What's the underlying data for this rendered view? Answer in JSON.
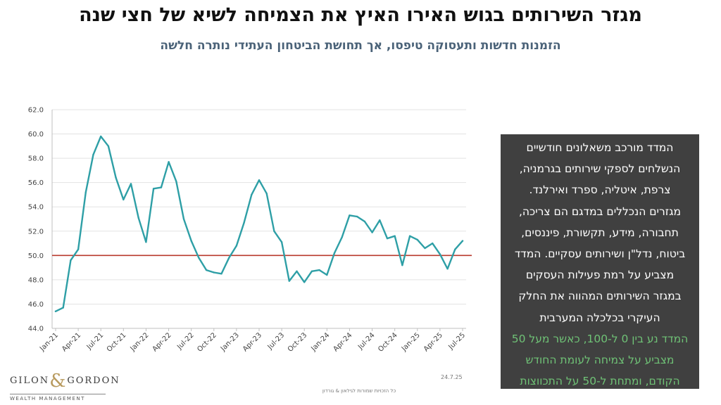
{
  "title": "מגזר השירותים בגוש האירו האיץ את הצמיחה לשיא של חצי שנה",
  "subtitle": "הזמנות חדשות ותעסוקה טיפסו, אך תחושת הביטחון העתידי נותרה חלשה",
  "note": {
    "lines": [
      "המדד מורכב משאלונים חודשיים",
      "הנשלחים לספקי שירותים בגרמניה,",
      "צרפת, איטליה, ספרד ואירלנד.",
      "מגזרים הנכללים במדגם הם צריכה,",
      "תחבורה, מידע, תקשורת, פיננסים,",
      "ביטוח, נדל\"ן ושירותים עסקיים. המדד",
      "מצביע על רמת פעילות העסקים",
      "במגזר השירותים המהווה את החלק",
      "העיקרי בכלכלה המערבית"
    ],
    "green_lines": [
      "המדד נע בין 0 ל-100, כאשר מעל 50",
      "מצביע על צמיחה לעומת החודש",
      "הקודם, ומתחת ל-50 על התכווצות"
    ]
  },
  "logo": {
    "left": "GILON",
    "amp": "&",
    "right": "GORDON",
    "sub": "WEALTH MANAGEMENT"
  },
  "date": "24.7.25",
  "footer": "כל הזכויות שמורות לגילאון & גורדון",
  "colors": {
    "line": "#2e9fa6",
    "threshold": "#b8392c",
    "grid": "#e3e3e3",
    "note_bg": "#404040",
    "note_green": "#6fc276"
  },
  "chart_data": {
    "type": "line",
    "x_tick_labels": [
      "Jan-21",
      "Apr-21",
      "Jul-21",
      "Oct-21",
      "Jan-22",
      "Apr-22",
      "Jul-22",
      "Oct-22",
      "Jan-23",
      "Apr-23",
      "Jul-23",
      "Oct-23",
      "Jan-24",
      "Apr-24",
      "Jul-24",
      "Oct-24",
      "Jan-25",
      "Apr-25",
      "Jul-25"
    ],
    "x": [
      "Jan-21",
      "Feb-21",
      "Mar-21",
      "Apr-21",
      "May-21",
      "Jun-21",
      "Jul-21",
      "Aug-21",
      "Sep-21",
      "Oct-21",
      "Nov-21",
      "Dec-21",
      "Jan-22",
      "Feb-22",
      "Mar-22",
      "Apr-22",
      "May-22",
      "Jun-22",
      "Jul-22",
      "Aug-22",
      "Sep-22",
      "Oct-22",
      "Nov-22",
      "Dec-22",
      "Jan-23",
      "Feb-23",
      "Mar-23",
      "Apr-23",
      "May-23",
      "Jun-23",
      "Jul-23",
      "Aug-23",
      "Sep-23",
      "Oct-23",
      "Nov-23",
      "Dec-23",
      "Jan-24",
      "Feb-24",
      "Mar-24",
      "Apr-24",
      "May-24",
      "Jun-24",
      "Jul-24",
      "Aug-24",
      "Sep-24",
      "Oct-24",
      "Nov-24",
      "Dec-24",
      "Jan-25",
      "Feb-25",
      "Mar-25",
      "Apr-25",
      "May-25",
      "Jun-25",
      "Jul-25"
    ],
    "series": [
      {
        "values": [
          45.4,
          45.7,
          49.6,
          50.5,
          55.2,
          58.3,
          59.8,
          59.0,
          56.4,
          54.6,
          55.9,
          53.1,
          51.1,
          55.5,
          55.6,
          57.7,
          56.1,
          53.0,
          51.2,
          49.8,
          48.8,
          48.6,
          48.5,
          49.8,
          50.8,
          52.7,
          55.0,
          56.2,
          55.1,
          52.0,
          51.1,
          47.9,
          48.7,
          47.8,
          48.7,
          48.8,
          48.4,
          50.2,
          51.5,
          53.3,
          53.2,
          52.8,
          51.9,
          52.9,
          51.4,
          51.6,
          49.2,
          51.6,
          51.3,
          50.6,
          51.0,
          50.1,
          48.9,
          50.5,
          51.2
        ]
      }
    ],
    "threshold": 50,
    "yticks": [
      "44.0",
      "46.0",
      "48.0",
      "50.0",
      "52.0",
      "54.0",
      "56.0",
      "58.0",
      "60.0",
      "62.0"
    ],
    "ylim": [
      44,
      62
    ],
    "grid": true
  }
}
